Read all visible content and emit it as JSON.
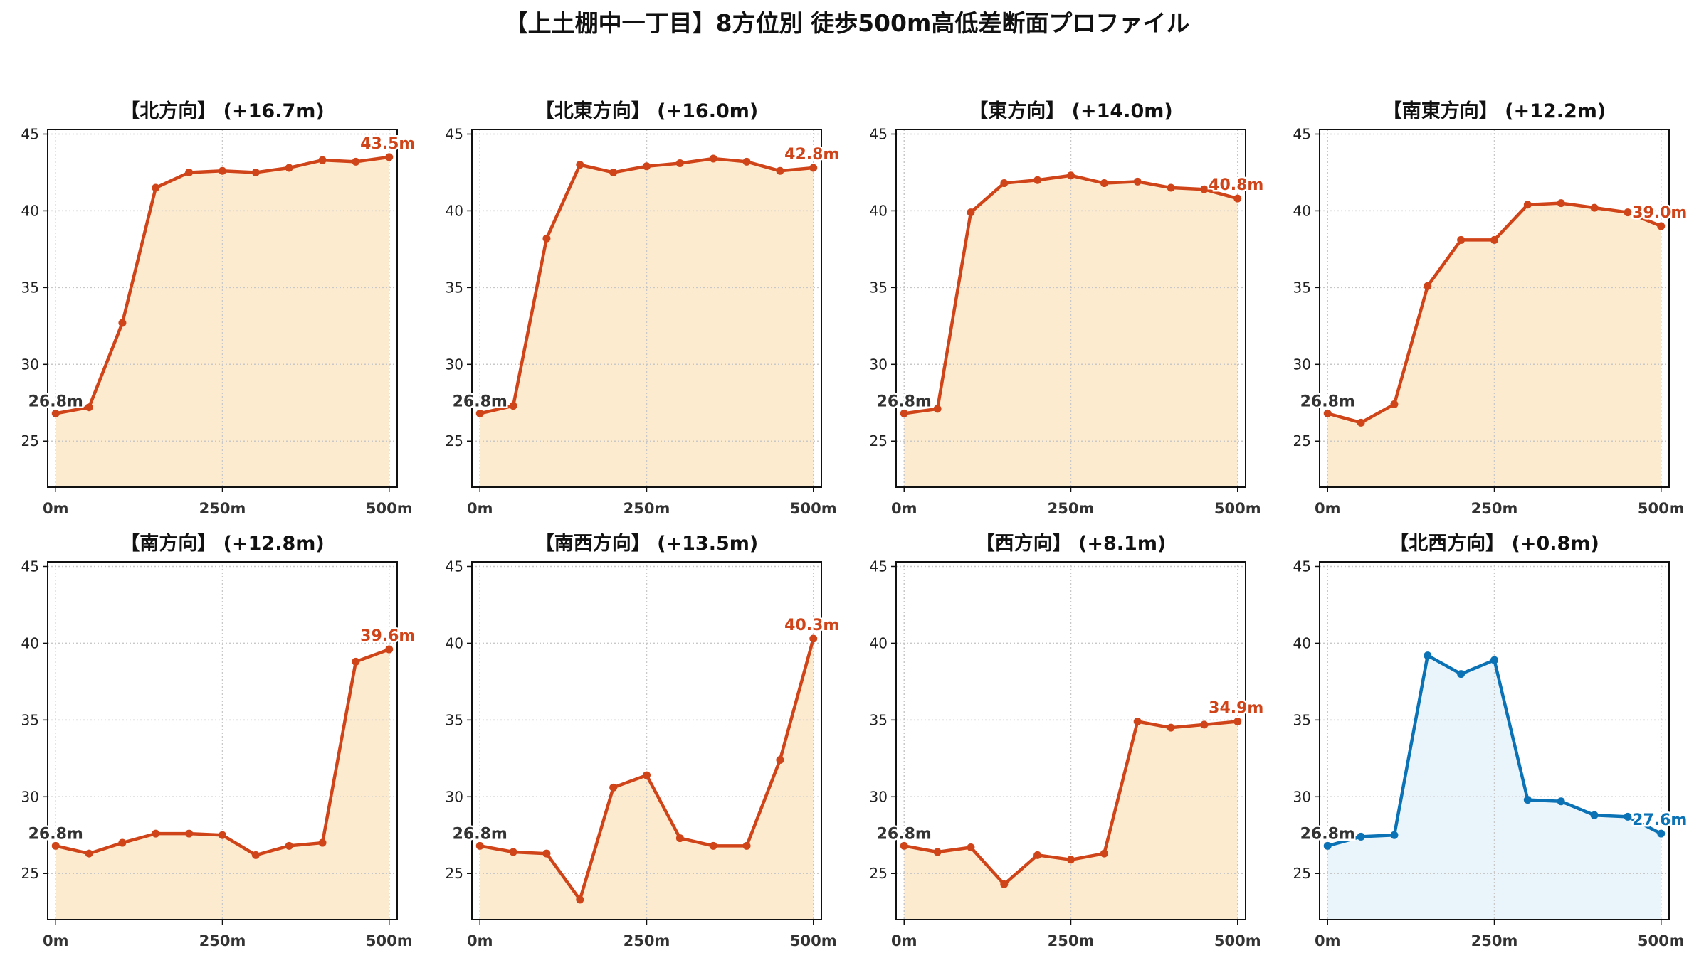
{
  "figure": {
    "title": "【上土棚中一丁目】8方位別 徒歩500m高低差断面プロファイル"
  },
  "colors": {
    "up_line": "#D04419",
    "up_fill": "#FDEBD0",
    "down_line": "#0A72B5",
    "down_fill": "#EAF5FB",
    "start_label": "#333333"
  },
  "chart_data": [
    {
      "type": "area",
      "title": "【北方向】 (+16.7m)",
      "x": [
        0,
        50,
        100,
        150,
        200,
        250,
        300,
        350,
        400,
        450,
        500
      ],
      "values": [
        26.8,
        27.2,
        32.7,
        41.5,
        42.5,
        42.6,
        42.5,
        42.8,
        43.3,
        43.2,
        43.5
      ],
      "start_label": "26.8m",
      "end_label": "43.5m",
      "style": "up",
      "xticks": [
        0,
        250,
        500
      ],
      "xtick_labels": [
        "0m",
        "250m",
        "500m"
      ],
      "yticks": [
        25,
        30,
        35,
        40,
        45
      ],
      "ylim": [
        22,
        45.3
      ],
      "xlim": [
        -12,
        512
      ],
      "grid": true
    },
    {
      "type": "area",
      "title": "【北東方向】 (+16.0m)",
      "x": [
        0,
        50,
        100,
        150,
        200,
        250,
        300,
        350,
        400,
        450,
        500
      ],
      "values": [
        26.8,
        27.3,
        38.2,
        43.0,
        42.5,
        42.9,
        43.1,
        43.4,
        43.2,
        42.6,
        42.8
      ],
      "start_label": "26.8m",
      "end_label": "42.8m",
      "style": "up",
      "xticks": [
        0,
        250,
        500
      ],
      "xtick_labels": [
        "0m",
        "250m",
        "500m"
      ],
      "yticks": [
        25,
        30,
        35,
        40,
        45
      ],
      "ylim": [
        22,
        45.3
      ],
      "xlim": [
        -12,
        512
      ],
      "grid": true
    },
    {
      "type": "area",
      "title": "【東方向】 (+14.0m)",
      "x": [
        0,
        50,
        100,
        150,
        200,
        250,
        300,
        350,
        400,
        450,
        500
      ],
      "values": [
        26.8,
        27.1,
        39.9,
        41.8,
        42.0,
        42.3,
        41.8,
        41.9,
        41.5,
        41.4,
        40.8
      ],
      "start_label": "26.8m",
      "end_label": "40.8m",
      "style": "up",
      "xticks": [
        0,
        250,
        500
      ],
      "xtick_labels": [
        "0m",
        "250m",
        "500m"
      ],
      "yticks": [
        25,
        30,
        35,
        40,
        45
      ],
      "ylim": [
        22,
        45.3
      ],
      "xlim": [
        -12,
        512
      ],
      "grid": true
    },
    {
      "type": "area",
      "title": "【南東方向】 (+12.2m)",
      "x": [
        0,
        50,
        100,
        150,
        200,
        250,
        300,
        350,
        400,
        450,
        500
      ],
      "values": [
        26.8,
        26.2,
        27.4,
        35.1,
        38.1,
        38.1,
        40.4,
        40.5,
        40.2,
        39.9,
        39.0
      ],
      "start_label": "26.8m",
      "end_label": "39.0m",
      "style": "up",
      "xticks": [
        0,
        250,
        500
      ],
      "xtick_labels": [
        "0m",
        "250m",
        "500m"
      ],
      "yticks": [
        25,
        30,
        35,
        40,
        45
      ],
      "ylim": [
        22,
        45.3
      ],
      "xlim": [
        -12,
        512
      ],
      "grid": true
    },
    {
      "type": "area",
      "title": "【南方向】 (+12.8m)",
      "x": [
        0,
        50,
        100,
        150,
        200,
        250,
        300,
        350,
        400,
        450,
        500
      ],
      "values": [
        26.8,
        26.3,
        27.0,
        27.6,
        27.6,
        27.5,
        26.2,
        26.8,
        27.0,
        38.8,
        39.6
      ],
      "start_label": "26.8m",
      "end_label": "39.6m",
      "style": "up",
      "xticks": [
        0,
        250,
        500
      ],
      "xtick_labels": [
        "0m",
        "250m",
        "500m"
      ],
      "yticks": [
        25,
        30,
        35,
        40,
        45
      ],
      "ylim": [
        22,
        45.3
      ],
      "xlim": [
        -12,
        512
      ],
      "grid": true
    },
    {
      "type": "area",
      "title": "【南西方向】 (+13.5m)",
      "x": [
        0,
        50,
        100,
        150,
        200,
        250,
        300,
        350,
        400,
        450,
        500
      ],
      "values": [
        26.8,
        26.4,
        26.3,
        23.3,
        30.6,
        31.4,
        27.3,
        26.8,
        26.8,
        32.4,
        40.3
      ],
      "start_label": "26.8m",
      "end_label": "40.3m",
      "style": "up",
      "xticks": [
        0,
        250,
        500
      ],
      "xtick_labels": [
        "0m",
        "250m",
        "500m"
      ],
      "yticks": [
        25,
        30,
        35,
        40,
        45
      ],
      "ylim": [
        22,
        45.3
      ],
      "xlim": [
        -12,
        512
      ],
      "grid": true
    },
    {
      "type": "area",
      "title": "【西方向】 (+8.1m)",
      "x": [
        0,
        50,
        100,
        150,
        200,
        250,
        300,
        350,
        400,
        450,
        500
      ],
      "values": [
        26.8,
        26.4,
        26.7,
        24.3,
        26.2,
        25.9,
        26.3,
        34.9,
        34.5,
        34.7,
        34.9
      ],
      "start_label": "26.8m",
      "end_label": "34.9m",
      "style": "up",
      "xticks": [
        0,
        250,
        500
      ],
      "xtick_labels": [
        "0m",
        "250m",
        "500m"
      ],
      "yticks": [
        25,
        30,
        35,
        40,
        45
      ],
      "ylim": [
        22,
        45.3
      ],
      "xlim": [
        -12,
        512
      ],
      "grid": true
    },
    {
      "type": "area",
      "title": "【北西方向】 (+0.8m)",
      "x": [
        0,
        50,
        100,
        150,
        200,
        250,
        300,
        350,
        400,
        450,
        500
      ],
      "values": [
        26.8,
        27.4,
        27.5,
        39.2,
        38.0,
        38.9,
        29.8,
        29.7,
        28.8,
        28.7,
        27.6
      ],
      "start_label": "26.8m",
      "end_label": "27.6m",
      "style": "down",
      "xticks": [
        0,
        250,
        500
      ],
      "xtick_labels": [
        "0m",
        "250m",
        "500m"
      ],
      "yticks": [
        25,
        30,
        35,
        40,
        45
      ],
      "ylim": [
        22,
        45.3
      ],
      "xlim": [
        -12,
        512
      ],
      "grid": true
    }
  ]
}
